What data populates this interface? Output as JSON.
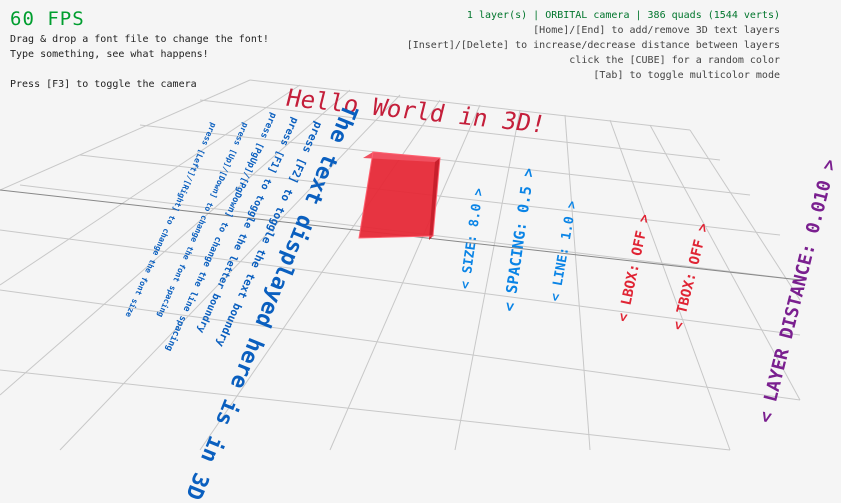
{
  "fps": "60 FPS",
  "help_left": [
    "Drag & drop a font file to change the font!",
    "Type something, see what happens!",
    "Press [F3] to toggle the camera"
  ],
  "status": "1 layer(s) | ORBITAL camera |  386 quads (1544 verts)",
  "help_right": [
    "[Home]/[End] to add/remove 3D text layers",
    "[Insert]/[Delete] to increase/decrease distance between layers",
    "click the [CUBE] for a random color",
    "[Tab] to toggle multicolor mode"
  ],
  "scene": {
    "hello": "Hello World in 3D!",
    "instructions": [
      "press [Left]/[Right] to change the font size",
      "press [Up]/[Down] to change the font spacing",
      "press [PgUp]/[PgDown] to change the line spacing",
      "press [F1] to toggle the letter boundry",
      "press [F2] to toggle the text boundry"
    ],
    "big_text": "The text displayed here is in 3D",
    "hud": {
      "size": "< SIZE: 8.0 >",
      "spacing": "< SPACING: 0.5 >",
      "line": "< LINE: 1.0 >",
      "lbox": "< LBOX: OFF >",
      "tbox": "< TBOX: OFF >",
      "layer_distance": "< LAYER DISTANCE: 0.010 >"
    },
    "cube_color": "#e62937"
  },
  "colors": {
    "fps": "#009e2f",
    "status": "#00752c",
    "text3d": "#0a5fbf",
    "hud": "#0a84e6",
    "off": "#e02434",
    "layer": "#7a1f8f",
    "background": "#f5f5f5"
  }
}
